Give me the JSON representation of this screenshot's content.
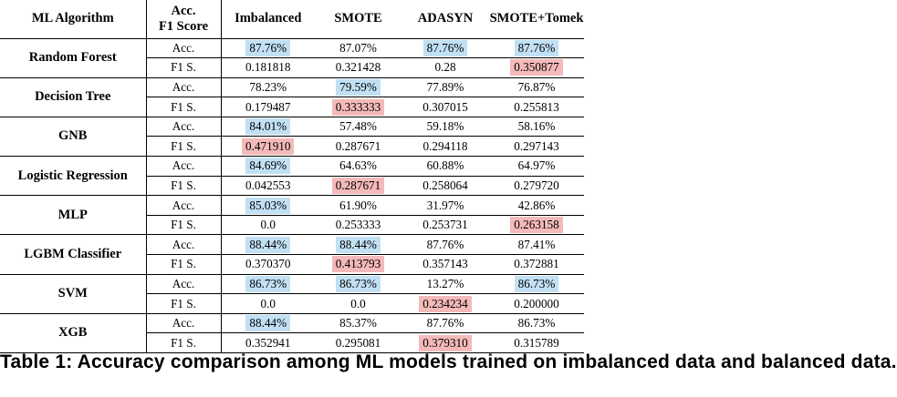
{
  "header": {
    "algorithm": "ML Algorithm",
    "metric_line1": "Acc.",
    "metric_line2": "F1 Score",
    "imbalanced": "Imbalanced",
    "smote": "SMOTE",
    "adasyn": "ADASYN",
    "smote_tomek": "SMOTE+Tomek"
  },
  "highlight_colors": {
    "best_accuracy": "#c2e0f4",
    "best_f1": "#f4b9b9"
  },
  "rows": [
    {
      "algorithm": "Random Forest",
      "acc_label": "Acc.",
      "f1_label": "F1 S.",
      "acc": [
        "87.76%",
        "87.07%",
        "87.76%",
        "87.76%"
      ],
      "acc_hl": [
        "blue",
        "none",
        "blue",
        "blue"
      ],
      "f1": [
        "0.181818",
        "0.321428",
        "0.28",
        "0.350877"
      ],
      "f1_hl": [
        "none",
        "none",
        "none",
        "red"
      ]
    },
    {
      "algorithm": "Decision Tree",
      "acc_label": "Acc.",
      "f1_label": "F1 S.",
      "acc": [
        "78.23%",
        "79.59%",
        "77.89%",
        "76.87%"
      ],
      "acc_hl": [
        "none",
        "blue",
        "none",
        "none"
      ],
      "f1": [
        "0.179487",
        "0.333333",
        "0.307015",
        "0.255813"
      ],
      "f1_hl": [
        "none",
        "red",
        "none",
        "none"
      ]
    },
    {
      "algorithm": "GNB",
      "acc_label": "Acc.",
      "f1_label": "F1 S.",
      "acc": [
        "84.01%",
        "57.48%",
        "59.18%",
        "58.16%"
      ],
      "acc_hl": [
        "blue",
        "none",
        "none",
        "none"
      ],
      "f1": [
        "0.471910",
        "0.287671",
        "0.294118",
        "0.297143"
      ],
      "f1_hl": [
        "red",
        "none",
        "none",
        "none"
      ]
    },
    {
      "algorithm": "Logistic Regression",
      "acc_label": "Acc.",
      "f1_label": "F1 S.",
      "acc": [
        "84.69%",
        "64.63%",
        "60.88%",
        "64.97%"
      ],
      "acc_hl": [
        "blue",
        "none",
        "none",
        "none"
      ],
      "f1": [
        "0.042553",
        "0.287671",
        "0.258064",
        "0.279720"
      ],
      "f1_hl": [
        "none",
        "red",
        "none",
        "none"
      ]
    },
    {
      "algorithm": "MLP",
      "acc_label": "Acc.",
      "f1_label": "F1 S.",
      "acc": [
        "85.03%",
        "61.90%",
        "31.97%",
        "42.86%"
      ],
      "acc_hl": [
        "blue",
        "none",
        "none",
        "none"
      ],
      "f1": [
        "0.0",
        "0.253333",
        "0.253731",
        "0.263158"
      ],
      "f1_hl": [
        "none",
        "none",
        "none",
        "red"
      ]
    },
    {
      "algorithm": "LGBM Classifier",
      "acc_label": "Acc.",
      "f1_label": "F1 S.",
      "acc": [
        "88.44%",
        "88.44%",
        "87.76%",
        "87.41%"
      ],
      "acc_hl": [
        "blue",
        "blue",
        "none",
        "none"
      ],
      "f1": [
        "0.370370",
        "0.413793",
        "0.357143",
        "0.372881"
      ],
      "f1_hl": [
        "none",
        "red",
        "none",
        "none"
      ]
    },
    {
      "algorithm": "SVM",
      "acc_label": "Acc.",
      "f1_label": "F1 S.",
      "acc": [
        "86.73%",
        "86.73%",
        "13.27%",
        "86.73%"
      ],
      "acc_hl": [
        "blue",
        "blue",
        "none",
        "blue"
      ],
      "f1": [
        "0.0",
        "0.0",
        "0.234234",
        "0.200000"
      ],
      "f1_hl": [
        "none",
        "none",
        "red",
        "none"
      ]
    },
    {
      "algorithm": "XGB",
      "acc_label": "Acc.",
      "f1_label": "F1 S.",
      "acc": [
        "88.44%",
        "85.37%",
        "87.76%",
        "86.73%"
      ],
      "acc_hl": [
        "blue",
        "none",
        "none",
        "none"
      ],
      "f1": [
        "0.352941",
        "0.295081",
        "0.379310",
        "0.315789"
      ],
      "f1_hl": [
        "none",
        "none",
        "red",
        "none"
      ]
    }
  ],
  "caption": "Table 1: Accuracy comparison among ML models trained on imbalanced data and balanced data."
}
